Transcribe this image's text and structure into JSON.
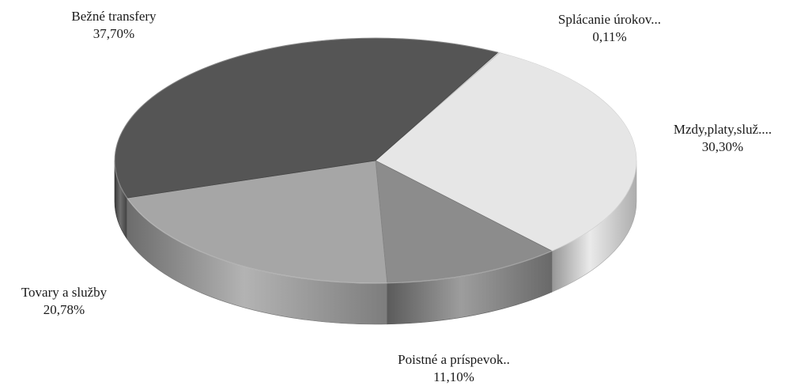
{
  "chart_data": {
    "type": "pie",
    "style": "3d",
    "title": "",
    "slices": [
      {
        "label": "Splácanie úrokov...",
        "value": 0.11,
        "value_label": "0,11%",
        "color": "#e6e6e6"
      },
      {
        "label": "Mzdy,platy,služ....",
        "value": 30.3,
        "value_label": "30,30%",
        "color": "#e6e6e6"
      },
      {
        "label": "Poistné a príspevok..",
        "value": 11.1,
        "value_label": "11,10%",
        "color": "#8c8c8c"
      },
      {
        "label": "Tovary a služby",
        "value": 20.78,
        "value_label": "20,78%",
        "color": "#a6a6a6"
      },
      {
        "label": "Bežné transfery",
        "value": 37.7,
        "value_label": "37,70%",
        "color": "#555555"
      }
    ],
    "legend": "none"
  }
}
